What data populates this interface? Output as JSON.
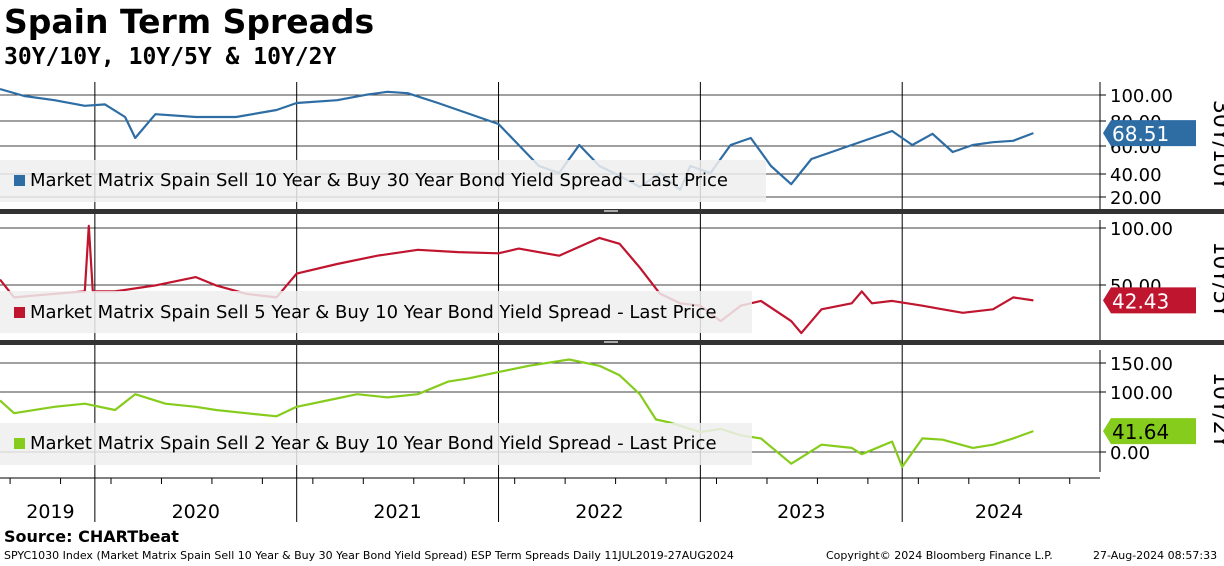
{
  "title": "Spain Term Spreads",
  "subtitle": "30Y/10Y, 10Y/5Y & 10Y/2Y",
  "source": "Source: CHARTbeat",
  "footer": {
    "left": "SPYC1030 Index (Market Matrix Spain Sell 10 Year & Buy 30 Year Bond Yield Spread) ESP Term Spreads  Daily 11JUL2019-27AUG2024",
    "copyright": "Copyright© 2024 Bloomberg Finance L.P.",
    "timestamp": "27-Aug-2024 08:57:33"
  },
  "chart_data": [
    {
      "type": "line",
      "panel_label": "30Y/10Y",
      "legend": "Market Matrix Spain Sell 10 Year & Buy 30 Year Bond Yield Spread - Last Price",
      "last_value": "68.51",
      "color": "#2e6da4",
      "ylim": [
        15,
        105
      ],
      "yticks": [
        "100.00",
        "80.00",
        "60.00",
        "40.00",
        "20.00"
      ],
      "series": [
        {
          "x": [
            2019.53,
            2019.65,
            2019.8,
            2019.95,
            2020.05,
            2020.15,
            2020.2,
            2020.3,
            2020.5,
            2020.7,
            2020.9,
            2021.0,
            2021.2,
            2021.35,
            2021.45,
            2021.55,
            2021.7,
            2021.9,
            2022.0,
            2022.1,
            2022.2,
            2022.3,
            2022.4,
            2022.5,
            2022.6,
            2022.7,
            2022.8,
            2022.9,
            2022.95,
            2023.05,
            2023.15,
            2023.25,
            2023.35,
            2023.45,
            2023.55,
            2023.65,
            2023.75,
            2023.85,
            2023.95,
            2024.05,
            2024.15,
            2024.25,
            2024.35,
            2024.45,
            2024.55,
            2024.65
          ],
          "values": [
            100,
            95,
            92,
            88,
            89,
            80,
            65,
            82,
            80,
            80,
            85,
            90,
            92,
            96,
            98,
            97,
            90,
            80,
            75,
            60,
            45,
            40,
            60,
            45,
            38,
            30,
            40,
            28,
            45,
            40,
            60,
            65,
            45,
            32,
            50,
            55,
            60,
            65,
            70,
            60,
            68,
            55,
            60,
            62,
            63,
            68.51
          ]
        }
      ]
    },
    {
      "type": "line",
      "panel_label": "10Y/5Y",
      "legend": "Market Matrix Spain Sell 5 Year & Buy 10 Year Bond Yield Spread - Last Price",
      "last_value": "42.43",
      "color": "#c0152f",
      "ylim": [
        10,
        110
      ],
      "yticks": [
        "100.00",
        "50.00"
      ],
      "series": [
        {
          "x": [
            2019.53,
            2019.6,
            2019.8,
            2019.95,
            2019.97,
            2019.99,
            2020.1,
            2020.3,
            2020.5,
            2020.6,
            2020.75,
            2020.9,
            2021.0,
            2021.2,
            2021.4,
            2021.6,
            2021.8,
            2022.0,
            2022.1,
            2022.3,
            2022.5,
            2022.6,
            2022.7,
            2022.8,
            2022.9,
            2023.0,
            2023.1,
            2023.2,
            2023.3,
            2023.45,
            2023.5,
            2023.6,
            2023.75,
            2023.8,
            2023.85,
            2023.95,
            2024.1,
            2024.2,
            2024.3,
            2024.45,
            2024.55,
            2024.65
          ],
          "values": [
            60,
            45,
            48,
            50,
            105,
            50,
            50,
            55,
            62,
            55,
            48,
            45,
            65,
            73,
            80,
            85,
            83,
            82,
            86,
            80,
            95,
            90,
            70,
            48,
            40,
            38,
            25,
            38,
            42,
            25,
            15,
            35,
            40,
            50,
            40,
            42,
            38,
            35,
            32,
            35,
            45,
            42.43
          ]
        }
      ]
    },
    {
      "type": "line",
      "panel_label": "10Y/2Y",
      "legend": "Market Matrix Spain Sell 2 Year & Buy 10 Year Bond Yield Spread - Last Price",
      "last_value": "41.64",
      "color": "#86cc1c",
      "ylim": [
        -20,
        170
      ],
      "yticks": [
        "150.00",
        "100.00",
        "0.00"
      ],
      "series": [
        {
          "x": [
            2019.53,
            2019.6,
            2019.8,
            2019.95,
            2020.1,
            2020.2,
            2020.35,
            2020.5,
            2020.6,
            2020.75,
            2020.9,
            2021.0,
            2021.15,
            2021.3,
            2021.45,
            2021.6,
            2021.75,
            2021.85,
            2022.0,
            2022.15,
            2022.35,
            2022.5,
            2022.6,
            2022.7,
            2022.78,
            2022.85,
            2022.9,
            2023.0,
            2023.1,
            2023.2,
            2023.3,
            2023.45,
            2023.5,
            2023.6,
            2023.75,
            2023.8,
            2023.95,
            2024.0,
            2024.1,
            2024.2,
            2024.35,
            2024.45,
            2024.55,
            2024.65
          ],
          "values": [
            90,
            70,
            80,
            85,
            75,
            100,
            85,
            80,
            75,
            70,
            65,
            80,
            90,
            100,
            95,
            100,
            120,
            125,
            135,
            145,
            155,
            145,
            130,
            100,
            60,
            55,
            50,
            40,
            45,
            35,
            30,
            -10,
            0,
            20,
            15,
            5,
            25,
            -15,
            30,
            28,
            15,
            20,
            30,
            41.64
          ]
        }
      ]
    }
  ],
  "x_axis": {
    "years": [
      "2019",
      "2020",
      "2021",
      "2022",
      "2023",
      "2024"
    ]
  }
}
